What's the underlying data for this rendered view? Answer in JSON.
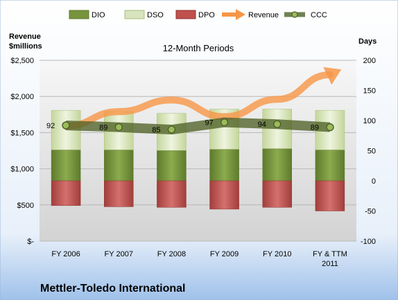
{
  "chart_data": {
    "type": "bar",
    "subtitle": "12-Month Periods",
    "company": "Mettler-Toledo International",
    "y_left_label_line1": "Revenue",
    "y_left_label_line2": "$millions",
    "y_right_label": "Days",
    "y_left_ticks": [
      "$-",
      "$500",
      "$1,000",
      "$1,500",
      "$2,000",
      "$2,500"
    ],
    "y_right_ticks": [
      "-100",
      "-50",
      "0",
      "50",
      "100",
      "150",
      "200"
    ],
    "y_left_range": [
      0,
      2500
    ],
    "y_right_range": [
      -100,
      200
    ],
    "categories": [
      {
        "line1": "FY 2006",
        "line2": ""
      },
      {
        "line1": "FY 2007",
        "line2": ""
      },
      {
        "line1": "FY 2008",
        "line2": ""
      },
      {
        "line1": "FY 2009",
        "line2": ""
      },
      {
        "line1": "FY 2010",
        "line2": ""
      },
      {
        "line1": "FY & TTM",
        "line2": "2011"
      }
    ],
    "legend_position": "top",
    "gridlines": true,
    "series": [
      {
        "name": "DIO",
        "axis": "right",
        "kind": "bar",
        "color": "#77933c",
        "values": [
          51,
          51,
          50,
          52,
          53,
          51
        ]
      },
      {
        "name": "DSO",
        "axis": "right",
        "kind": "bar",
        "color": "#d7e4bd",
        "values": [
          66,
          64,
          62,
          67,
          66,
          66
        ]
      },
      {
        "name": "DPO",
        "axis": "right",
        "kind": "bar",
        "color": "#c0504d",
        "values": [
          -41,
          -43,
          -44,
          -47,
          -44,
          -50
        ]
      },
      {
        "name": "Revenue",
        "axis": "left",
        "kind": "arrow",
        "color": "#f79646",
        "values": [
          1590,
          1790,
          1950,
          1720,
          1960,
          2300
        ]
      },
      {
        "name": "CCC",
        "axis": "right",
        "kind": "line",
        "color": "#4f6228",
        "values": [
          92,
          89,
          85,
          97,
          94,
          89
        ]
      }
    ]
  }
}
